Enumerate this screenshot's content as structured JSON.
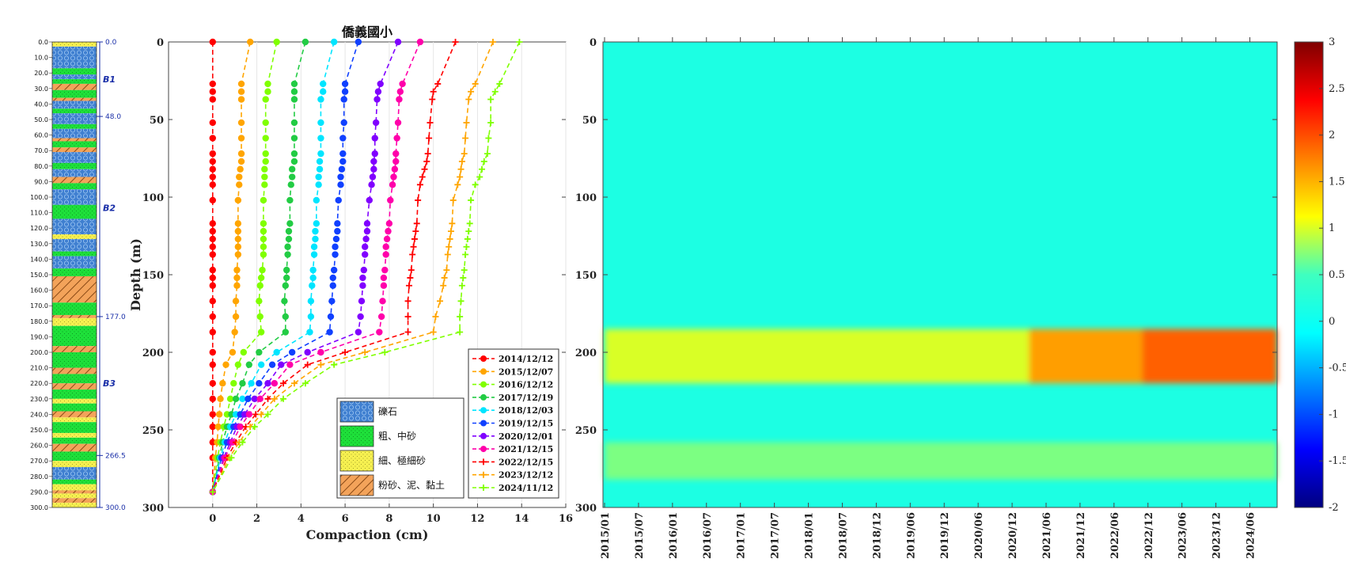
{
  "chart_data": [
    {
      "type": "column",
      "name": "lithology column",
      "depth_ticks": [
        "0.0",
        "10.0",
        "20.0",
        "30.0",
        "40.0",
        "50.0",
        "60.0",
        "70.0",
        "80.0",
        "90.0",
        "100.0",
        "110.0",
        "120.0",
        "130.0",
        "140.0",
        "150.0",
        "160.0",
        "170.0",
        "180.0",
        "190.0",
        "200.0",
        "210.0",
        "220.0",
        "230.0",
        "240.0",
        "250.0",
        "260.0",
        "270.0",
        "280.0",
        "290.0",
        "300.0"
      ],
      "boundary_labels": [
        "0.0",
        "48.0",
        "177.0",
        "266.5",
        "300.0"
      ],
      "unit_labels": [
        {
          "label": "B1",
          "depth": 24
        },
        {
          "label": "B2",
          "depth": 107
        },
        {
          "label": "B3",
          "depth": 220
        }
      ],
      "layers": [
        {
          "top": 0,
          "bottom": 3,
          "type": "fine"
        },
        {
          "top": 3,
          "bottom": 17,
          "type": "gravel"
        },
        {
          "top": 17,
          "bottom": 21,
          "type": "sand"
        },
        {
          "top": 21,
          "bottom": 24,
          "type": "gravel"
        },
        {
          "top": 24,
          "bottom": 27,
          "type": "sand"
        },
        {
          "top": 27,
          "bottom": 31,
          "type": "silt"
        },
        {
          "top": 31,
          "bottom": 36,
          "type": "sand"
        },
        {
          "top": 36,
          "bottom": 38,
          "type": "silt"
        },
        {
          "top": 38,
          "bottom": 43,
          "type": "gravel"
        },
        {
          "top": 43,
          "bottom": 46,
          "type": "sand"
        },
        {
          "top": 46,
          "bottom": 53,
          "type": "gravel"
        },
        {
          "top": 53,
          "bottom": 56,
          "type": "sand"
        },
        {
          "top": 56,
          "bottom": 62,
          "type": "gravel"
        },
        {
          "top": 62,
          "bottom": 64,
          "type": "silt"
        },
        {
          "top": 64,
          "bottom": 68,
          "type": "sand"
        },
        {
          "top": 68,
          "bottom": 71,
          "type": "silt"
        },
        {
          "top": 71,
          "bottom": 78,
          "type": "gravel"
        },
        {
          "top": 78,
          "bottom": 82,
          "type": "sand"
        },
        {
          "top": 82,
          "bottom": 87,
          "type": "gravel"
        },
        {
          "top": 87,
          "bottom": 91,
          "type": "silt"
        },
        {
          "top": 91,
          "bottom": 95,
          "type": "sand"
        },
        {
          "top": 95,
          "bottom": 105,
          "type": "gravel"
        },
        {
          "top": 105,
          "bottom": 114,
          "type": "sand"
        },
        {
          "top": 114,
          "bottom": 124,
          "type": "gravel"
        },
        {
          "top": 124,
          "bottom": 127,
          "type": "fine"
        },
        {
          "top": 127,
          "bottom": 135,
          "type": "gravel"
        },
        {
          "top": 135,
          "bottom": 138,
          "type": "sand"
        },
        {
          "top": 138,
          "bottom": 146,
          "type": "gravel"
        },
        {
          "top": 146,
          "bottom": 151,
          "type": "sand"
        },
        {
          "top": 151,
          "bottom": 153,
          "type": "silt"
        },
        {
          "top": 153,
          "bottom": 168,
          "type": "silt"
        },
        {
          "top": 168,
          "bottom": 176,
          "type": "sand"
        },
        {
          "top": 176,
          "bottom": 178,
          "type": "silt"
        },
        {
          "top": 178,
          "bottom": 183,
          "type": "fine"
        },
        {
          "top": 183,
          "bottom": 196,
          "type": "sand"
        },
        {
          "top": 196,
          "bottom": 200,
          "type": "silt"
        },
        {
          "top": 200,
          "bottom": 210,
          "type": "sand"
        },
        {
          "top": 210,
          "bottom": 214,
          "type": "silt"
        },
        {
          "top": 214,
          "bottom": 220,
          "type": "sand"
        },
        {
          "top": 220,
          "bottom": 224,
          "type": "silt"
        },
        {
          "top": 224,
          "bottom": 230,
          "type": "sand"
        },
        {
          "top": 230,
          "bottom": 233,
          "type": "fine"
        },
        {
          "top": 233,
          "bottom": 238,
          "type": "sand"
        },
        {
          "top": 238,
          "bottom": 242,
          "type": "silt"
        },
        {
          "top": 242,
          "bottom": 245,
          "type": "fine"
        },
        {
          "top": 245,
          "bottom": 252,
          "type": "sand"
        },
        {
          "top": 252,
          "bottom": 255,
          "type": "fine"
        },
        {
          "top": 255,
          "bottom": 259,
          "type": "sand"
        },
        {
          "top": 259,
          "bottom": 264,
          "type": "silt"
        },
        {
          "top": 264,
          "bottom": 270,
          "type": "sand"
        },
        {
          "top": 270,
          "bottom": 274,
          "type": "fine"
        },
        {
          "top": 274,
          "bottom": 282,
          "type": "gravel"
        },
        {
          "top": 282,
          "bottom": 285,
          "type": "sand"
        },
        {
          "top": 285,
          "bottom": 289,
          "type": "fine"
        },
        {
          "top": 289,
          "bottom": 291,
          "type": "silt"
        },
        {
          "top": 291,
          "bottom": 294,
          "type": "fine"
        },
        {
          "top": 294,
          "bottom": 297,
          "type": "silt"
        },
        {
          "top": 297,
          "bottom": 300,
          "type": "fine"
        }
      ]
    },
    {
      "type": "line",
      "title": "僑義國小",
      "xlabel": "Compaction (cm)",
      "ylabel": "Depth (m)",
      "xlim": [
        -2,
        16
      ],
      "ylim": [
        300,
        0
      ],
      "xticks": [
        "0",
        "2",
        "4",
        "6",
        "8",
        "10",
        "12",
        "14",
        "16"
      ],
      "yticks": [
        "0",
        "50",
        "100",
        "150",
        "200",
        "250",
        "300"
      ],
      "depths": [
        0,
        27,
        32,
        37,
        52,
        62,
        72,
        77,
        82,
        87,
        92,
        102,
        117,
        122,
        127,
        132,
        137,
        147,
        152,
        157,
        167,
        177,
        187,
        200,
        208,
        220,
        230,
        240,
        248,
        258,
        268,
        290
      ],
      "series": [
        {
          "name": "2014/12/12",
          "color": "#ff0000",
          "marker": "o",
          "values": [
            0,
            0,
            0,
            0,
            0,
            0,
            0,
            0,
            0,
            0,
            0,
            0,
            0,
            0,
            0,
            0,
            0,
            0,
            0,
            0,
            0,
            0,
            0,
            0,
            0,
            0,
            0,
            0,
            0,
            0,
            0,
            0
          ]
        },
        {
          "name": "2015/12/07",
          "color": "#ffa500",
          "marker": "o",
          "values": [
            1.7,
            1.3,
            1.3,
            1.3,
            1.3,
            1.3,
            1.3,
            1.3,
            1.25,
            1.2,
            1.2,
            1.15,
            1.15,
            1.15,
            1.15,
            1.15,
            1.15,
            1.1,
            1.1,
            1.1,
            1.05,
            1.05,
            1.0,
            0.9,
            0.6,
            0.45,
            0.35,
            0.3,
            0.25,
            0.2,
            0.12,
            0
          ]
        },
        {
          "name": "2016/12/12",
          "color": "#80ff00",
          "marker": "o",
          "values": [
            2.9,
            2.5,
            2.5,
            2.4,
            2.4,
            2.4,
            2.4,
            2.4,
            2.35,
            2.35,
            2.35,
            2.3,
            2.3,
            2.3,
            2.3,
            2.3,
            2.3,
            2.25,
            2.2,
            2.15,
            2.1,
            2.15,
            2.2,
            1.4,
            1.15,
            0.95,
            0.8,
            0.65,
            0.5,
            0.35,
            0.22,
            0
          ]
        },
        {
          "name": "2017/12/19",
          "color": "#22cc44",
          "marker": "o",
          "values": [
            4.2,
            3.7,
            3.7,
            3.7,
            3.7,
            3.7,
            3.7,
            3.7,
            3.6,
            3.6,
            3.55,
            3.5,
            3.5,
            3.45,
            3.45,
            3.4,
            3.4,
            3.35,
            3.35,
            3.3,
            3.25,
            3.3,
            3.3,
            2.1,
            1.65,
            1.35,
            1.05,
            0.85,
            0.65,
            0.45,
            0.3,
            0
          ]
        },
        {
          "name": "2018/12/03",
          "color": "#00e5ff",
          "marker": "o",
          "values": [
            5.5,
            5.0,
            5.0,
            4.9,
            4.9,
            4.9,
            4.9,
            4.85,
            4.85,
            4.8,
            4.8,
            4.7,
            4.7,
            4.65,
            4.65,
            4.6,
            4.6,
            4.55,
            4.55,
            4.5,
            4.45,
            4.45,
            4.4,
            2.9,
            2.2,
            1.75,
            1.35,
            1.05,
            0.8,
            0.55,
            0.35,
            0
          ]
        },
        {
          "name": "2019/12/15",
          "color": "#1040ff",
          "marker": "o",
          "values": [
            6.6,
            6.0,
            6.0,
            5.95,
            5.95,
            5.9,
            5.9,
            5.9,
            5.85,
            5.8,
            5.8,
            5.7,
            5.65,
            5.65,
            5.6,
            5.55,
            5.55,
            5.5,
            5.45,
            5.45,
            5.4,
            5.35,
            5.3,
            3.6,
            2.7,
            2.1,
            1.6,
            1.25,
            0.95,
            0.65,
            0.4,
            0
          ]
        },
        {
          "name": "2020/12/01",
          "color": "#8000ff",
          "marker": "o",
          "values": [
            8.4,
            7.6,
            7.5,
            7.45,
            7.4,
            7.35,
            7.35,
            7.3,
            7.3,
            7.25,
            7.2,
            7.1,
            7.0,
            7.0,
            6.95,
            6.9,
            6.9,
            6.85,
            6.8,
            6.8,
            6.75,
            6.7,
            6.6,
            4.3,
            3.1,
            2.5,
            1.9,
            1.45,
            1.1,
            0.8,
            0.5,
            0
          ]
        },
        {
          "name": "2021/12/15",
          "color": "#ff00aa",
          "marker": "o",
          "values": [
            9.4,
            8.6,
            8.5,
            8.45,
            8.4,
            8.35,
            8.3,
            8.3,
            8.25,
            8.2,
            8.15,
            8.05,
            8.0,
            7.95,
            7.9,
            7.85,
            7.85,
            7.8,
            7.75,
            7.75,
            7.7,
            7.65,
            7.55,
            4.9,
            3.5,
            2.8,
            2.15,
            1.65,
            1.25,
            0.9,
            0.55,
            0
          ]
        },
        {
          "name": "2022/12/15",
          "color": "#ff0000",
          "marker": "+",
          "values": [
            11.0,
            10.2,
            10.0,
            9.95,
            9.85,
            9.8,
            9.75,
            9.7,
            9.6,
            9.5,
            9.4,
            9.3,
            9.25,
            9.2,
            9.15,
            9.1,
            9.05,
            9.0,
            8.95,
            8.9,
            8.85,
            8.85,
            8.85,
            6.0,
            4.3,
            3.2,
            2.5,
            1.95,
            1.5,
            1.05,
            0.65,
            0
          ]
        },
        {
          "name": "2023/12/12",
          "color": "#ffa500",
          "marker": "+",
          "values": [
            12.7,
            11.9,
            11.7,
            11.6,
            11.5,
            11.45,
            11.4,
            11.3,
            11.25,
            11.2,
            11.1,
            10.9,
            10.85,
            10.8,
            10.75,
            10.7,
            10.65,
            10.6,
            10.5,
            10.45,
            10.3,
            10.1,
            10.0,
            6.9,
            4.9,
            3.7,
            2.8,
            2.2,
            1.7,
            1.2,
            0.75,
            0
          ]
        },
        {
          "name": "2024/11/12",
          "color": "#80ff00",
          "marker": "+",
          "values": [
            13.9,
            13.0,
            12.8,
            12.6,
            12.6,
            12.5,
            12.45,
            12.3,
            12.2,
            12.1,
            11.9,
            11.7,
            11.65,
            11.6,
            11.55,
            11.5,
            11.45,
            11.4,
            11.35,
            11.3,
            11.25,
            11.2,
            11.2,
            7.8,
            5.5,
            4.2,
            3.2,
            2.5,
            1.9,
            1.35,
            0.85,
            0
          ]
        }
      ],
      "legend_placement": "bottom-right"
    },
    {
      "type": "heatmap",
      "ylabel": "",
      "ylim": [
        0,
        300
      ],
      "yticks": [
        "0",
        "50",
        "100",
        "150",
        "200",
        "250",
        "300"
      ],
      "xticks": [
        "2015/01",
        "2015/07",
        "2016/01",
        "2016/07",
        "2017/01",
        "2017/07",
        "2018/01",
        "2018/07",
        "2018/12",
        "2019/06",
        "2019/12",
        "2020/06",
        "2020/12",
        "2021/06",
        "2021/12",
        "2022/06",
        "2022/12",
        "2023/06",
        "2023/12",
        "2024/06"
      ],
      "colorbar": {
        "min": -2,
        "max": 3,
        "ticks": [
          "3",
          "2.5",
          "2",
          "1.5",
          "1",
          "0.5",
          "0",
          "-0.5",
          "-1",
          "-1.5",
          "-2"
        ],
        "colormap": "jet"
      },
      "features": [
        {
          "depth_range": [
            185,
            220
          ],
          "start": "2015/01",
          "end": "2021/04",
          "value": 1.0
        },
        {
          "depth_range": [
            185,
            220
          ],
          "start": "2021/04",
          "end": "2022/12",
          "value": 1.6
        },
        {
          "depth_range": [
            185,
            220
          ],
          "start": "2022/12",
          "end": "2024/11",
          "value": 1.9
        },
        {
          "depth_range": [
            258,
            282
          ],
          "start": "2015/01",
          "end": "2024/11",
          "value": 0.7
        }
      ]
    }
  ],
  "lithology_legend": [
    {
      "label": "礫石",
      "type": "gravel"
    },
    {
      "label": "粗、中砂",
      "type": "sand"
    },
    {
      "label": "細、極細砂",
      "type": "fine"
    },
    {
      "label": "粉砂、泥、黏土",
      "type": "silt"
    }
  ]
}
